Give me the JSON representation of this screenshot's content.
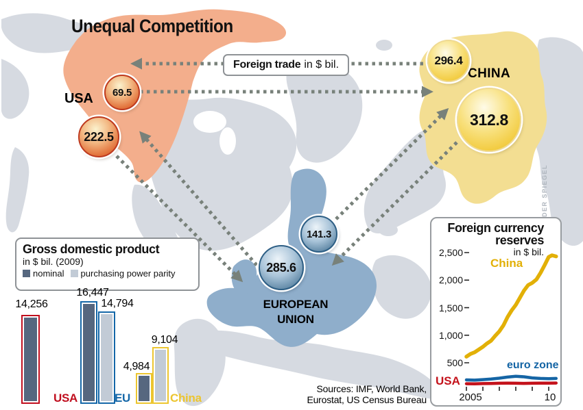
{
  "title": "Unequal Competition",
  "watermark": "DER SPIEGEL",
  "sources": {
    "line1": "Sources: IMF, World Bank,",
    "line2": "Eurostat, US Census Bureau"
  },
  "map": {
    "labels": {
      "usa": "USA",
      "china": "CHINA",
      "eu_line1": "EUROPEAN",
      "eu_line2": "UNION"
    },
    "colors": {
      "usa_land": "#F3AE8C",
      "china_land": "#F3DE92",
      "eu_land": "#8FAECB",
      "other_land": "#D6DAE1",
      "sea": "#FFFFFF",
      "arrow": "#78817A"
    }
  },
  "foreign_trade": {
    "box_label_bold": "Foreign trade",
    "box_label_rest": "in $ bil.",
    "bubbles": [
      {
        "id": "usa-to-china",
        "region": "USA",
        "value": "69.5"
      },
      {
        "id": "usa-to-eu",
        "region": "USA",
        "value": "222.5"
      },
      {
        "id": "china-to-usa",
        "region": "China",
        "value": "296.4"
      },
      {
        "id": "china-to-eu",
        "region": "China",
        "value": "312.8"
      },
      {
        "id": "eu-to-china",
        "region": "EU",
        "value": "141.3"
      },
      {
        "id": "eu-to-usa",
        "region": "EU",
        "value": "285.6"
      }
    ]
  },
  "chart_data": [
    {
      "type": "bar",
      "title": "Gross domestic product",
      "subtitle": "in $ bil. (2009)",
      "legend": [
        "nominal",
        "purchasing power parity"
      ],
      "categories": [
        "USA",
        "EU",
        "China"
      ],
      "series": [
        {
          "name": "nominal",
          "values": [
            14256,
            16447,
            4984
          ]
        },
        {
          "name": "purchasing power parity",
          "values": [
            null,
            14794,
            9104
          ]
        }
      ],
      "value_labels": {
        "usa_nominal": "14,256",
        "eu_nominal": "16,447",
        "eu_ppp": "14,794",
        "china_nominal": "4,984",
        "china_ppp": "9,104"
      },
      "colors": {
        "nominal_fill": "#56677F",
        "ppp_fill": "#C2CBD6",
        "usa_accent": "#C00E1E",
        "eu_accent": "#1467A8",
        "china_accent": "#ECC52F"
      }
    },
    {
      "type": "line",
      "title_line1": "Foreign currency",
      "title_line2": "reserves",
      "subtitle": "in $ bil.",
      "ylim": [
        0,
        2600
      ],
      "yticks": [
        {
          "label": "2,500",
          "value": 2500
        },
        {
          "label": "2,000",
          "value": 2000
        },
        {
          "label": "1,500",
          "value": 1500
        },
        {
          "label": "1,000",
          "value": 1000
        },
        {
          "label": "500",
          "value": 500
        }
      ],
      "xticks": [
        {
          "label": "2005",
          "year": 2005
        },
        {
          "label": "10",
          "year": 2010
        }
      ],
      "xtick_marks": [
        2005,
        2006,
        2007,
        2008,
        2009,
        2010
      ],
      "series": [
        {
          "name": "China",
          "color": "#E2B007",
          "x": [
            2005,
            2005.25,
            2005.5,
            2005.75,
            2006,
            2006.25,
            2006.5,
            2006.75,
            2007,
            2007.25,
            2007.5,
            2007.75,
            2008,
            2008.25,
            2008.5,
            2008.75,
            2009,
            2009.25,
            2009.5,
            2009.75,
            2010,
            2010.2,
            2010.45
          ],
          "values": [
            610,
            660,
            690,
            740,
            790,
            850,
            900,
            990,
            1070,
            1180,
            1330,
            1450,
            1550,
            1680,
            1810,
            1910,
            1950,
            2010,
            2130,
            2270,
            2420,
            2450,
            2430
          ]
        },
        {
          "name": "euro zone",
          "color": "#1565A5",
          "x": [
            2005,
            2005.5,
            2006,
            2006.5,
            2007,
            2007.5,
            2008,
            2008.5,
            2009,
            2009.5,
            2010,
            2010.45
          ],
          "values": [
            190,
            185,
            195,
            205,
            220,
            240,
            255,
            245,
            225,
            215,
            210,
            215
          ]
        },
        {
          "name": "USA",
          "color": "#C4121B",
          "x": [
            2005,
            2005.5,
            2006,
            2006.5,
            2007,
            2007.5,
            2008,
            2008.5,
            2009,
            2009.5,
            2010,
            2010.45
          ],
          "values": [
            120,
            118,
            122,
            125,
            128,
            130,
            128,
            126,
            128,
            130,
            130,
            132
          ]
        }
      ]
    }
  ]
}
